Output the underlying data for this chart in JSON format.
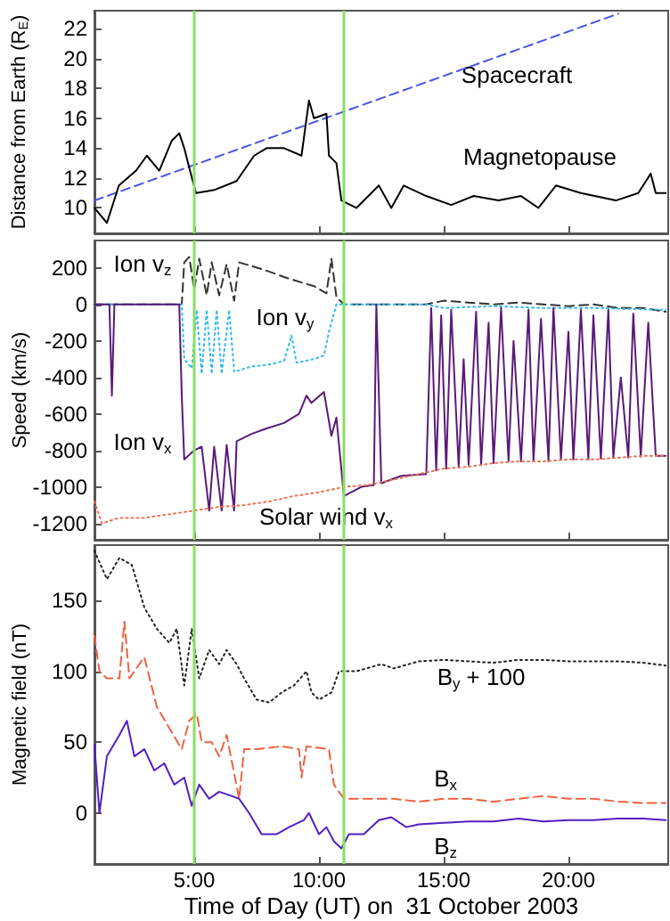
{
  "chart_data": [
    {
      "type": "line",
      "ylabel": "Distance from Earth (R$_{E}$)",
      "xlim": [
        1,
        24
      ],
      "xticks": [
        5,
        10,
        15,
        20
      ],
      "ylim": [
        8.3,
        23.2
      ],
      "yticks": [
        10,
        12,
        14,
        16,
        18,
        20,
        22
      ],
      "tick_labels": "y",
      "legend": false,
      "grid": false,
      "ref_lines": [
        {
          "axis": "x",
          "value": 5,
          "color": "#88e060"
        },
        {
          "axis": "x",
          "value": 11,
          "color": "#88e060"
        }
      ],
      "series": [
        {
          "name": "Spacecraft",
          "color": "#4a55e8",
          "line_style": "dashed",
          "x": [
            1,
            22
          ],
          "values": [
            10.5,
            23
          ]
        },
        {
          "name": "Magnetopause",
          "color": "#000000",
          "line_style": "solid",
          "x": [
            1.0,
            1.5,
            1.98,
            2.67,
            3.1,
            3.6,
            4.1,
            4.4,
            4.6,
            4.83,
            5.07,
            5.8,
            6.7,
            7.4,
            7.9,
            8.6,
            9.3,
            9.6,
            9.8,
            10.3,
            10.4,
            10.7,
            10.9,
            11.5,
            12.4,
            12.9,
            13.4,
            14.3,
            15.3,
            16.2,
            17.2,
            18.1,
            18.8,
            19.5,
            20.5,
            21.9,
            22.8,
            23.3,
            23.5,
            23.9
          ],
          "values": [
            10,
            9,
            11.5,
            12.5,
            13.5,
            12.5,
            14.5,
            15,
            14,
            12.5,
            11,
            11.2,
            11.8,
            13.5,
            14,
            14,
            13.5,
            17.2,
            16,
            16.3,
            13.5,
            13,
            10.5,
            10,
            11.5,
            10,
            11.5,
            10.8,
            10.2,
            10.8,
            10.5,
            10.8,
            10,
            11.5,
            11,
            10.5,
            11,
            12.3,
            11,
            11
          ]
        }
      ]
    },
    {
      "type": "line",
      "ylabel": "Speed (km/s)",
      "xlim": [
        1,
        24
      ],
      "xticks": [
        5,
        10,
        15,
        20
      ],
      "ylim": [
        -1290,
        350
      ],
      "yticks": [
        -1200,
        -1000,
        -800,
        -600,
        -400,
        -200,
        0,
        200
      ],
      "tick_labels": "y",
      "legend": false,
      "grid": false,
      "ref_lines": [
        {
          "axis": "x",
          "value": 5,
          "color": "#88e060"
        },
        {
          "axis": "x",
          "value": 11,
          "color": "#88e060"
        }
      ],
      "series": [
        {
          "name": "Ion v$_{z}$",
          "color": "#333333",
          "line_style": "dashed",
          "x": [
            1,
            4.5,
            4.6,
            4.8,
            5.0,
            5.2,
            5.5,
            5.7,
            6.0,
            6.3,
            6.6,
            6.8,
            7.3,
            8.0,
            8.6,
            9.3,
            9.8,
            10.3,
            10.5,
            10.7,
            11,
            12,
            13,
            14.3,
            15,
            16,
            17,
            18,
            19,
            20,
            21,
            22,
            23,
            23.9
          ],
          "values": [
            0,
            0,
            230,
            260,
            80,
            250,
            50,
            230,
            50,
            220,
            20,
            230,
            210,
            180,
            150,
            120,
            100,
            60,
            250,
            40,
            0,
            0,
            0,
            0,
            20,
            10,
            0,
            10,
            0,
            -10,
            0,
            -20,
            -20,
            -40
          ]
        },
        {
          "name": "Ion v$_{y}$",
          "color": "#33bbf0",
          "line_style": "dotted",
          "x": [
            1,
            4.5,
            4.6,
            4.9,
            5.1,
            5.3,
            5.5,
            5.7,
            5.9,
            6.1,
            6.4,
            6.6,
            7.3,
            8.0,
            8.6,
            8.9,
            9.1,
            9.8,
            10.2,
            10.4,
            10.7,
            12,
            14.3,
            15,
            17,
            19,
            21,
            23.9
          ],
          "values": [
            0,
            0,
            -300,
            -350,
            -30,
            -380,
            -30,
            -380,
            -30,
            -380,
            -30,
            -370,
            -340,
            -330,
            -310,
            -170,
            -320,
            -300,
            -280,
            -150,
            0,
            0,
            0,
            -20,
            -10,
            -20,
            -20,
            -30
          ]
        },
        {
          "name": "Ion v$_{x}$",
          "color": "#5a1a78",
          "line_style": "solid",
          "x": [
            1,
            1.6,
            1.7,
            1.8,
            4.4,
            4.5,
            4.6,
            5.0,
            5.3,
            5.6,
            5.8,
            6.1,
            6.3,
            6.6,
            6.7,
            7.3,
            7.9,
            8.6,
            9.2,
            9.5,
            9.7,
            10.2,
            10.5,
            10.7,
            11,
            11.7,
            12.2,
            12.3,
            12.5,
            13.3,
            14.3,
            14.5,
            14.7,
            14.9,
            15.1,
            15.3,
            15.6,
            15.8,
            16.0,
            16.3,
            16.5,
            16.8,
            17.0,
            17.3,
            17.6,
            17.8,
            18.1,
            18.4,
            18.6,
            18.9,
            19.2,
            19.4,
            19.7,
            20.0,
            20.2,
            20.5,
            20.8,
            21.0,
            21.3,
            21.6,
            21.8,
            22.1,
            22.4,
            22.6,
            22.9,
            23.2,
            23.5,
            23.9
          ],
          "values": [
            0,
            0,
            -500,
            0,
            0,
            -500,
            -850,
            -800,
            -780,
            -1130,
            -780,
            -1130,
            -770,
            -1130,
            -750,
            -710,
            -680,
            -650,
            -600,
            -500,
            -540,
            -480,
            -720,
            -620,
            -1050,
            -1000,
            -990,
            0,
            -980,
            -940,
            -930,
            -20,
            -910,
            -60,
            -900,
            -30,
            -890,
            -300,
            -880,
            -40,
            -880,
            -100,
            -870,
            -20,
            -860,
            -200,
            -860,
            -30,
            -860,
            -80,
            -860,
            -20,
            -850,
            -150,
            -850,
            -30,
            -850,
            -60,
            -845,
            -30,
            -840,
            -400,
            -840,
            -50,
            -835,
            -100,
            -830,
            -830
          ]
        },
        {
          "name": "Solar wind v$_{x}$",
          "color": "#f07050",
          "line_style": "dotted",
          "x": [
            1,
            1.3,
            2,
            3,
            4,
            5,
            6,
            7,
            8,
            9,
            10,
            11,
            12,
            13,
            14,
            15,
            16,
            17,
            18,
            19,
            20,
            21,
            22,
            23,
            23.9
          ],
          "values": [
            -1080,
            -1200,
            -1170,
            -1170,
            -1150,
            -1130,
            -1110,
            -1100,
            -1080,
            -1050,
            -1030,
            -1000,
            -990,
            -960,
            -930,
            -900,
            -890,
            -870,
            -860,
            -860,
            -850,
            -850,
            -840,
            -830,
            -830
          ]
        }
      ]
    },
    {
      "type": "line",
      "ylabel": "Magnetic field (nT)",
      "xlabel": "Time of Day (UT) on  31 October 2003",
      "xlim": [
        1,
        24
      ],
      "xticks": [
        {
          "value": 5,
          "label": "5:00"
        },
        {
          "value": 10,
          "label": "10:00"
        },
        {
          "value": 15,
          "label": "15:00"
        },
        {
          "value": 20,
          "label": "20:00"
        }
      ],
      "ylim": [
        -36,
        189
      ],
      "yticks": [
        0,
        50,
        100,
        150
      ],
      "legend": false,
      "grid": false,
      "ref_lines": [
        {
          "axis": "x",
          "value": 5,
          "color": "#88e060"
        },
        {
          "axis": "x",
          "value": 11,
          "color": "#88e060"
        }
      ],
      "series": [
        {
          "name": "B$_{y}$ + 100",
          "color": "#222222",
          "line_style": "dotted",
          "x": [
            1,
            1.5,
            2,
            2.5,
            3,
            3.5,
            4,
            4.3,
            4.6,
            4.9,
            5.2,
            5.6,
            6,
            6.3,
            6.7,
            7.0,
            7.5,
            8,
            8.5,
            9,
            9.5,
            9.7,
            10,
            10.5,
            10.8,
            11.5,
            12.5,
            13,
            14,
            15,
            16,
            17,
            18,
            19,
            20,
            21,
            22,
            23,
            23.9
          ],
          "values": [
            185,
            165,
            180,
            175,
            145,
            130,
            120,
            130,
            90,
            130,
            95,
            115,
            105,
            115,
            105,
            95,
            80,
            78,
            85,
            90,
            100,
            85,
            80,
            85,
            100,
            100,
            105,
            102,
            107,
            108,
            107,
            106,
            108,
            108,
            107,
            107,
            107,
            106,
            104
          ]
        },
        {
          "name": "B$_{x}$",
          "color": "#f06040",
          "line_style": "dashed",
          "x": [
            1,
            1.2,
            1.5,
            2,
            2.2,
            2.4,
            3,
            3.5,
            4,
            4.5,
            4.8,
            5.1,
            5.3,
            5.7,
            6,
            6.3,
            6.8,
            7,
            7.5,
            8.5,
            9.2,
            9.3,
            9.5,
            10.4,
            10.6,
            10.8,
            11,
            12,
            13,
            14,
            15,
            16,
            17,
            18,
            19,
            20,
            21,
            22,
            23,
            23.9
          ],
          "values": [
            125,
            100,
            95,
            95,
            135,
            95,
            110,
            75,
            60,
            45,
            65,
            70,
            50,
            50,
            40,
            55,
            10,
            45,
            45,
            47,
            45,
            25,
            47,
            45,
            20,
            15,
            10,
            10,
            10,
            8,
            10,
            10,
            8,
            10,
            12,
            10,
            10,
            8,
            7,
            7
          ]
        },
        {
          "name": "B$_{z}$",
          "color": "#5020c0",
          "line_style": "solid",
          "x": [
            1,
            1.2,
            1.5,
            2,
            2.3,
            2.6,
            3,
            3.4,
            3.8,
            4.2,
            4.6,
            4.9,
            5.2,
            5.6,
            6,
            6.5,
            6.8,
            7.2,
            7.7,
            8.3,
            8.8,
            9.4,
            9.6,
            10,
            10.3,
            10.6,
            10.9,
            11.2,
            11.8,
            12.4,
            12.9,
            13.5,
            14,
            15,
            16,
            17,
            18,
            19,
            20,
            21,
            22,
            23,
            23.9
          ],
          "values": [
            48,
            0,
            40,
            55,
            65,
            40,
            45,
            30,
            35,
            20,
            25,
            5,
            20,
            10,
            15,
            12,
            10,
            0,
            -15,
            -15,
            -10,
            -5,
            0,
            -15,
            -10,
            -20,
            -25,
            -15,
            -15,
            -5,
            -3,
            -10,
            -8,
            -7,
            -6,
            -6,
            -4,
            -6,
            -5,
            -5,
            -4,
            -4,
            -5
          ]
        }
      ]
    }
  ]
}
